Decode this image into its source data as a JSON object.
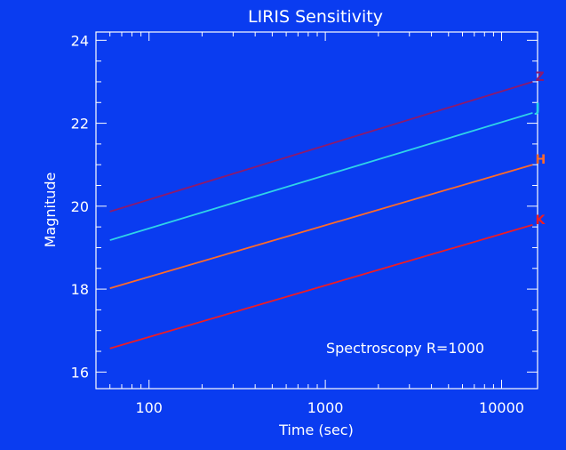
{
  "chart_data": {
    "type": "line",
    "title": "LIRIS Sensitivity",
    "xlabel": "Time (sec)",
    "ylabel": "Magnitude",
    "x_scale": "log",
    "xlim": [
      50,
      16000
    ],
    "ylim": [
      15.6,
      24.2
    ],
    "x_ticks": [
      100,
      1000,
      10000
    ],
    "x_tick_labels": [
      "100",
      "1000",
      "10000"
    ],
    "y_ticks": [
      16,
      18,
      20,
      22,
      24
    ],
    "y_tick_labels": [
      "16",
      "18",
      "20",
      "22",
      "24"
    ],
    "annotation": "Spectroscopy R=1000",
    "grid": false,
    "series": [
      {
        "name": "Z",
        "color": "#8c1a6e",
        "points": [
          [
            60,
            19.87
          ],
          [
            15000,
            23.0
          ]
        ]
      },
      {
        "name": "J",
        "color": "#2fd4e8",
        "points": [
          [
            60,
            19.18
          ],
          [
            15000,
            22.25
          ]
        ]
      },
      {
        "name": "H",
        "color": "#ff6a2a",
        "points": [
          [
            60,
            18.02
          ],
          [
            15000,
            21.0
          ]
        ]
      },
      {
        "name": "K",
        "color": "#ee1c24",
        "points": [
          [
            60,
            16.57
          ],
          [
            15000,
            19.55
          ]
        ]
      }
    ]
  }
}
